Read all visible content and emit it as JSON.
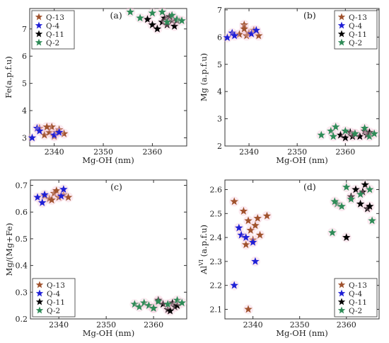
{
  "chart_data": [
    {
      "type": "scatter",
      "panel_label": "(a)",
      "xlabel": "Mg-OH (nm)",
      "ylabel": "Fe(a.p.f.u)",
      "xlim": [
        2335,
        2367
      ],
      "ylim": [
        2.7,
        7.75
      ],
      "xticks": [
        2340,
        2350,
        2360
      ],
      "yticks": [
        3,
        4,
        5,
        6,
        7
      ],
      "legend_position": "top-left",
      "series": [
        {
          "name": "Q-13",
          "color": "#a0522d",
          "x": [
            2337,
            2338,
            2339,
            2339.5,
            2340,
            2341,
            2342,
            2338.5,
            2340.5
          ],
          "y": [
            3.35,
            3.1,
            3.2,
            3.4,
            3.05,
            3.3,
            3.15,
            3.4,
            3.2
          ]
        },
        {
          "name": "Q-4",
          "color": "#1f1fd6",
          "x": [
            2335.5,
            2336.5,
            2337,
            2340,
            2341
          ],
          "y": [
            3.0,
            3.35,
            3.25,
            3.1,
            3.2
          ]
        },
        {
          "name": "Q-11",
          "color": "#000000",
          "x": [
            2359,
            2360,
            2361,
            2362,
            2362.5,
            2363,
            2364,
            2364.5,
            2365,
            2363.5
          ],
          "y": [
            7.35,
            7.15,
            7.0,
            7.25,
            7.4,
            7.15,
            7.3,
            7.1,
            7.3,
            7.45
          ]
        },
        {
          "name": "Q-2",
          "color": "#2e8b57",
          "x": [
            2355.5,
            2357.5,
            2360,
            2362,
            2364,
            2365,
            2366,
            2363
          ],
          "y": [
            7.62,
            7.4,
            7.58,
            7.62,
            7.5,
            7.35,
            7.3,
            7.25
          ]
        }
      ]
    },
    {
      "type": "scatter",
      "panel_label": "(b)",
      "xlabel": "Mg-OH (nm)",
      "ylabel": "Mg (a.p.f.u)",
      "xlim": [
        2335,
        2367
      ],
      "ylim": [
        2,
        7.05
      ],
      "xticks": [
        2340,
        2350,
        2360
      ],
      "yticks": [
        2,
        3,
        4,
        5,
        6,
        7
      ],
      "legend_position": "top-right",
      "series": [
        {
          "name": "Q-13",
          "color": "#a0522d",
          "x": [
            2338,
            2339,
            2339.5,
            2340,
            2341,
            2342,
            2339
          ],
          "y": [
            6.1,
            6.45,
            6.05,
            6.15,
            6.25,
            6.05,
            6.3
          ]
        },
        {
          "name": "Q-4",
          "color": "#1f1fd6",
          "x": [
            2335.5,
            2336.5,
            2337,
            2340.5,
            2341.5
          ],
          "y": [
            5.98,
            6.15,
            6.05,
            6.12,
            6.25
          ]
        },
        {
          "name": "Q-11",
          "color": "#000000",
          "x": [
            2359,
            2360,
            2361,
            2362,
            2363,
            2364,
            2364.5,
            2365,
            2361.5
          ],
          "y": [
            2.4,
            2.3,
            2.5,
            2.45,
            2.35,
            2.55,
            2.4,
            2.5,
            2.35
          ]
        },
        {
          "name": "Q-2",
          "color": "#2e8b57",
          "x": [
            2355,
            2357,
            2358,
            2360,
            2362,
            2364,
            2365,
            2366,
            2357.5
          ],
          "y": [
            2.4,
            2.55,
            2.7,
            2.55,
            2.45,
            2.65,
            2.35,
            2.45,
            2.35
          ]
        }
      ]
    },
    {
      "type": "scatter",
      "panel_label": "(c)",
      "xlabel": "Mg-OH (nm)",
      "ylabel": "Mg/(Mg+Fe)",
      "xlim": [
        2334,
        2367
      ],
      "ylim": [
        0.2,
        0.72
      ],
      "xticks": [
        2340,
        2350,
        2360
      ],
      "yticks": [
        0.2,
        0.3,
        0.4,
        0.5,
        0.6,
        0.7
      ],
      "legend_position": "bottom-left",
      "series": [
        {
          "name": "Q-13",
          "color": "#a0522d",
          "x": [
            2337,
            2338,
            2339,
            2339.5,
            2340,
            2341,
            2342,
            2338.5
          ],
          "y": [
            0.66,
            0.65,
            0.67,
            0.68,
            0.655,
            0.665,
            0.655,
            0.645
          ]
        },
        {
          "name": "Q-4",
          "color": "#1f1fd6",
          "x": [
            2335.5,
            2336.5,
            2337,
            2340.5,
            2341
          ],
          "y": [
            0.655,
            0.635,
            0.665,
            0.66,
            0.685
          ]
        },
        {
          "name": "Q-11",
          "color": "#000000",
          "x": [
            2360,
            2361,
            2362,
            2363,
            2364,
            2364.5,
            2365,
            2363.5
          ],
          "y": [
            0.24,
            0.27,
            0.255,
            0.235,
            0.26,
            0.245,
            0.25,
            0.23
          ]
        },
        {
          "name": "Q-2",
          "color": "#2e8b57",
          "x": [
            2356,
            2357,
            2358,
            2359,
            2361,
            2363,
            2365,
            2366,
            2360
          ],
          "y": [
            0.255,
            0.245,
            0.26,
            0.25,
            0.265,
            0.255,
            0.27,
            0.26,
            0.24
          ]
        }
      ]
    },
    {
      "type": "scatter",
      "panel_label": "(d)",
      "xlabel": "Mg-OH (nm)",
      "ylabel": "Al^VI (a.p.f.u)",
      "xlim": [
        2334,
        2367
      ],
      "ylim": [
        2.06,
        2.64
      ],
      "xticks": [
        2340,
        2350,
        2360
      ],
      "yticks": [
        2.1,
        2.2,
        2.3,
        2.4,
        2.5,
        2.6
      ],
      "legend_position": "bottom-right",
      "series": [
        {
          "name": "Q-13",
          "color": "#a0522d",
          "x": [
            2336,
            2338,
            2338.5,
            2339,
            2339.5,
            2340,
            2340.5,
            2341,
            2341.5,
            2343,
            2339
          ],
          "y": [
            2.55,
            2.51,
            2.37,
            2.47,
            2.43,
            2.39,
            2.45,
            2.48,
            2.41,
            2.49,
            2.1
          ]
        },
        {
          "name": "Q-4",
          "color": "#1f1fd6",
          "x": [
            2336,
            2337,
            2337.5,
            2338.5,
            2340,
            2340.5
          ],
          "y": [
            2.2,
            2.44,
            2.41,
            2.4,
            2.38,
            2.3
          ]
        },
        {
          "name": "Q-11",
          "color": "#000000",
          "x": [
            2360,
            2361,
            2362,
            2363,
            2364,
            2364.5,
            2365,
            2363.5
          ],
          "y": [
            2.4,
            2.57,
            2.6,
            2.54,
            2.62,
            2.52,
            2.53,
            2.59
          ]
        },
        {
          "name": "Q-2",
          "color": "#2e8b57",
          "x": [
            2357,
            2358,
            2359,
            2360,
            2361,
            2363,
            2365,
            2365.5,
            2357.5
          ],
          "y": [
            2.42,
            2.54,
            2.53,
            2.61,
            2.56,
            2.58,
            2.6,
            2.47,
            2.55
          ]
        }
      ]
    }
  ]
}
